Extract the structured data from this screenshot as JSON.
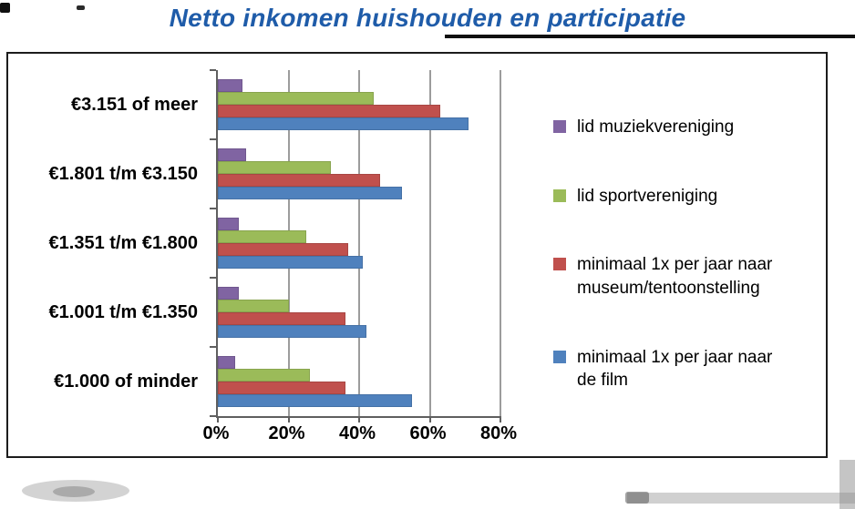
{
  "page": {
    "title": "Netto inkomen huishouden en participatie"
  },
  "chart_data": {
    "type": "bar",
    "orientation": "horizontal",
    "title": "Netto inkomen huishouden en participatie",
    "categories": [
      "€3.151 of meer",
      "€1.801 t/m €3.150",
      "€1.351 t/m €1.800",
      "€1.001 t/m €1.350",
      "€1.000 of minder"
    ],
    "series": [
      {
        "name": "lid muziekvereniging",
        "legend_label": "lid muziekvereniging",
        "color": "#8064A2",
        "values": [
          7,
          8,
          6,
          6,
          5
        ]
      },
      {
        "name": "lid sportvereniging",
        "legend_label": "lid sportvereniging",
        "color": "#9BBB59",
        "values": [
          44,
          32,
          25,
          20,
          26
        ]
      },
      {
        "name": "minimaal 1x per jaar naar museum/tentoonstelling",
        "legend_label": "minimaal 1x per jaar naar\nmuseum/tentoonstelling",
        "color": "#C0504D",
        "values": [
          63,
          46,
          37,
          36,
          36
        ]
      },
      {
        "name": "minimaal 1x per jaar naar de film",
        "legend_label": "minimaal 1x per jaar naar\nde film",
        "color": "#4F81BD",
        "values": [
          71,
          52,
          41,
          42,
          55
        ]
      }
    ],
    "x_ticks": [
      "0%",
      "20%",
      "40%",
      "60%",
      "80%"
    ],
    "x_tick_values": [
      0,
      20,
      40,
      60,
      80
    ],
    "xlim": [
      0,
      80
    ],
    "grid": "vertical",
    "legend_position": "right",
    "bar_order_top_to_bottom": [
      "lid muziekvereniging",
      "lid sportvereniging",
      "minimaal 1x per jaar naar museum/tentoonstelling",
      "minimaal 1x per jaar naar de film"
    ],
    "category_order_top_to_bottom": [
      "€3.151 of meer",
      "€1.801 t/m €3.150",
      "€1.351 t/m €1.800",
      "€1.001 t/m €1.350",
      "€1.000 of minder"
    ]
  }
}
